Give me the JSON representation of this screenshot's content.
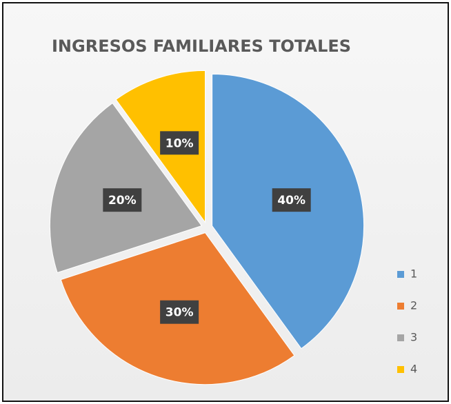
{
  "chart_data": {
    "type": "pie",
    "title": "INGRESOS FAMILIARES TOTALES",
    "categories": [
      "1",
      "2",
      "3",
      "4"
    ],
    "values": [
      40,
      30,
      20,
      10
    ],
    "value_labels": [
      "40%",
      "30%",
      "20%",
      "10%"
    ],
    "colors": [
      "#5b9bd5",
      "#ed7d31",
      "#a5a5a5",
      "#ffc000"
    ],
    "legend": "right"
  }
}
